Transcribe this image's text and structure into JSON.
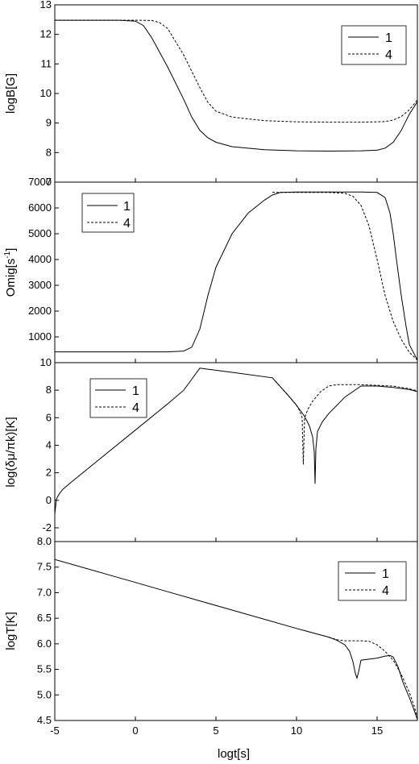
{
  "chart_data": [
    {
      "type": "line",
      "ylabel": "logB[G]",
      "xlim": [
        -5,
        17.5
      ],
      "ylim": [
        7,
        13
      ],
      "yticks": [
        "7",
        "8",
        "9",
        "10",
        "11",
        "12",
        "13"
      ],
      "legend": "top-right",
      "series": [
        {
          "name": "1",
          "style": "solid",
          "x": [
            -5,
            -1,
            0,
            0.5,
            1,
            2,
            3,
            3.5,
            4,
            4.5,
            5,
            6,
            8,
            10,
            12,
            14,
            15,
            15.5,
            16,
            16.5,
            17,
            17.5
          ],
          "y": [
            12.48,
            12.48,
            12.45,
            12.3,
            11.9,
            10.9,
            9.8,
            9.2,
            8.75,
            8.5,
            8.35,
            8.2,
            8.1,
            8.06,
            8.05,
            8.06,
            8.08,
            8.15,
            8.35,
            8.75,
            9.3,
            9.72
          ]
        },
        {
          "name": "4",
          "style": "dashed",
          "x": [
            -5,
            0,
            1,
            1.5,
            2,
            3,
            4,
            4.5,
            5,
            6,
            8,
            10,
            12,
            14,
            15,
            15.5,
            16,
            16.5,
            17,
            17.5
          ],
          "y": [
            12.48,
            12.48,
            12.47,
            12.4,
            12.2,
            11.3,
            10.2,
            9.7,
            9.4,
            9.2,
            9.08,
            9.04,
            9.03,
            9.03,
            9.04,
            9.05,
            9.1,
            9.22,
            9.45,
            9.78
          ]
        }
      ]
    },
    {
      "type": "line",
      "ylabel": "Omig[s",
      "ylabel_sup": "-1",
      "ylabel_end": "]",
      "xlim": [
        -5,
        17.5
      ],
      "ylim": [
        0,
        7000
      ],
      "yticks": [
        "1000",
        "2000",
        "3000",
        "4000",
        "5000",
        "6000",
        "7000"
      ],
      "legend": "top-left",
      "series": [
        {
          "name": "1",
          "style": "solid",
          "x": [
            -5,
            2,
            3,
            3.5,
            4,
            4.5,
            5,
            6,
            7,
            8,
            8.5,
            9,
            10,
            12,
            14,
            15,
            15.5,
            15.8,
            16,
            16.2,
            16.5,
            16.8,
            17,
            17.5
          ],
          "y": [
            420,
            420,
            450,
            600,
            1300,
            2600,
            3700,
            5000,
            5800,
            6300,
            6500,
            6600,
            6620,
            6620,
            6620,
            6600,
            6400,
            5800,
            5000,
            4000,
            2600,
            1400,
            700,
            100
          ]
        },
        {
          "name": "4",
          "style": "dashed",
          "x": [
            8.5,
            12,
            13,
            13.5,
            14,
            14.5,
            15,
            15.5,
            16,
            16.5,
            17,
            17.5
          ],
          "y": [
            6600,
            6600,
            6570,
            6450,
            6100,
            5300,
            4000,
            2600,
            1600,
            900,
            400,
            100
          ]
        }
      ]
    },
    {
      "type": "line",
      "ylabel": "log(δμ/πk)[K]",
      "xlim": [
        -5,
        17.5
      ],
      "ylim": [
        -3,
        10
      ],
      "yticks": [
        "-2",
        "0",
        "2",
        "4",
        "6",
        "8",
        "10"
      ],
      "legend": "top-left",
      "series": [
        {
          "name": "1",
          "style": "solid",
          "x": [
            -5,
            -4.9,
            -4.7,
            -4.5,
            -4,
            -2,
            0,
            2,
            3,
            3.5,
            4,
            6,
            8.5,
            9.5,
            10,
            10.5,
            10.8,
            11,
            11.1,
            11.15,
            11.2,
            11.3,
            11.6,
            12,
            13,
            14,
            15,
            16,
            17,
            17.5
          ],
          "y": [
            -1.0,
            0.1,
            0.5,
            0.8,
            1.3,
            3.2,
            5.1,
            7.0,
            8.0,
            8.8,
            9.6,
            9.3,
            8.9,
            7.6,
            6.9,
            6.1,
            5.4,
            4.6,
            3.5,
            1.2,
            3.7,
            5.0,
            5.7,
            6.3,
            7.5,
            8.3,
            8.3,
            8.2,
            8.05,
            7.9
          ]
        },
        {
          "name": "4",
          "style": "dashed",
          "x": [
            8.5,
            9.5,
            10,
            10.2,
            10.35,
            10.42,
            10.5,
            10.7,
            11,
            11.5,
            12,
            12.5,
            14,
            16,
            17,
            17.5
          ],
          "y": [
            8.9,
            7.6,
            6.9,
            6.5,
            6.0,
            2.6,
            6.0,
            6.6,
            7.2,
            7.9,
            8.3,
            8.4,
            8.4,
            8.3,
            8.1,
            7.95
          ]
        }
      ]
    },
    {
      "type": "line",
      "xlabel": "logt[s]",
      "ylabel": "logT[K]",
      "xlim": [
        -5,
        17.5
      ],
      "ylim": [
        4.5,
        8.0
      ],
      "xticks": [
        "-5",
        "0",
        "5",
        "10",
        "15"
      ],
      "xtick_values": [
        -5,
        0,
        5,
        10,
        15
      ],
      "yticks": [
        "4.5",
        "5.0",
        "5.5",
        "6.0",
        "6.5",
        "7.0",
        "7.5",
        "8.0"
      ],
      "legend": "top-right",
      "series": [
        {
          "name": "1",
          "style": "solid",
          "x": [
            -5,
            -2,
            0,
            2,
            4,
            6,
            8,
            10,
            12,
            12.5,
            13,
            13.3,
            13.5,
            13.65,
            13.75,
            13.85,
            14,
            14.5,
            15,
            15.5,
            15.8,
            16,
            16.3,
            16.6,
            17,
            17.3,
            17.5
          ],
          "y": [
            7.65,
            7.38,
            7.2,
            7.02,
            6.84,
            6.66,
            6.48,
            6.3,
            6.13,
            6.07,
            5.98,
            5.85,
            5.65,
            5.42,
            5.33,
            5.45,
            5.68,
            5.7,
            5.72,
            5.76,
            5.77,
            5.74,
            5.55,
            5.25,
            4.95,
            4.7,
            4.52
          ]
        },
        {
          "name": "4",
          "style": "dashed",
          "x": [
            12,
            12.5,
            13,
            14,
            14.5,
            15,
            15.5,
            16,
            16.5,
            17,
            17.3,
            17.5
          ],
          "y": [
            6.13,
            6.08,
            6.06,
            6.06,
            6.05,
            5.98,
            5.85,
            5.68,
            5.4,
            5.05,
            4.78,
            4.55
          ]
        }
      ]
    }
  ]
}
